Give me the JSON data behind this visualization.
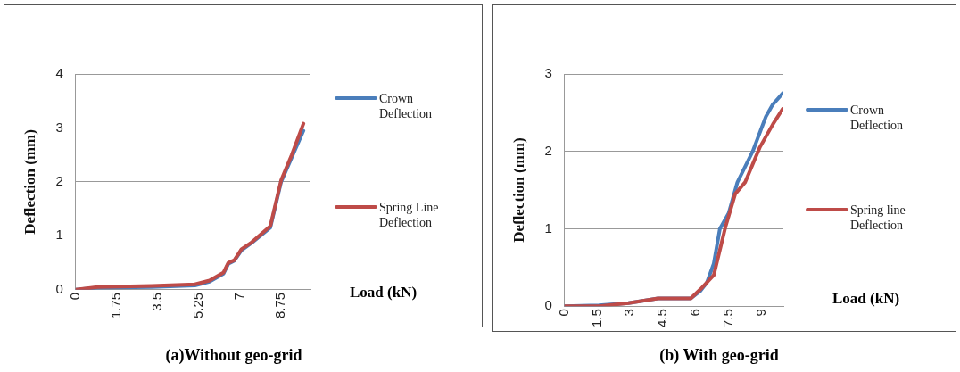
{
  "chart_data": [
    {
      "type": "line",
      "title": "(a)Without geo-grid",
      "xlabel": "Load (kN)",
      "ylabel": "Deflection (mm)",
      "xlim": [
        0,
        10
      ],
      "xticks": [
        0,
        1.75,
        3.5,
        5.25,
        7,
        8.75
      ],
      "ylim": [
        0,
        4
      ],
      "yticks": [
        0,
        1,
        2,
        3,
        4
      ],
      "grid": "y",
      "legend": "right",
      "marker": "none",
      "line_style": "solid",
      "series": [
        {
          "name": "Crown Deflection",
          "color": "#4a7ebb",
          "x": [
            0,
            0.95,
            3.24,
            5.08,
            5.7,
            6.3,
            6.5,
            6.76,
            7.06,
            7.5,
            8.29,
            8.75,
            9.2,
            9.7
          ],
          "values": [
            0,
            0.04,
            0.05,
            0.08,
            0.15,
            0.3,
            0.48,
            0.54,
            0.73,
            0.87,
            1.15,
            2.0,
            2.45,
            2.95
          ]
        },
        {
          "name": "Spring Line Deflection",
          "color": "#be4b48",
          "x": [
            0,
            0.95,
            3.24,
            5.08,
            5.7,
            6.3,
            6.5,
            6.76,
            7.06,
            7.5,
            8.29,
            8.75,
            9.2,
            9.7
          ],
          "values": [
            0,
            0.05,
            0.07,
            0.1,
            0.17,
            0.32,
            0.5,
            0.55,
            0.75,
            0.88,
            1.18,
            2.03,
            2.5,
            3.08
          ]
        }
      ]
    },
    {
      "type": "line",
      "title": "(b) With geo-grid",
      "xlabel": "Load (kN)",
      "ylabel": "Deflection (mm)",
      "xlim": [
        0,
        10
      ],
      "xticks": [
        0,
        1.5,
        3,
        4.5,
        6,
        7.5,
        9
      ],
      "ylim": [
        0,
        3
      ],
      "yticks": [
        0,
        1,
        2,
        3
      ],
      "grid": "y",
      "legend": "right",
      "marker": "none",
      "line_style": "solid",
      "series": [
        {
          "name": "Crown Deflection",
          "color": "#4a7ebb",
          "x": [
            0,
            1.57,
            2.92,
            4.27,
            5.77,
            6.22,
            6.5,
            6.82,
            7.1,
            7.5,
            7.9,
            8.6,
            9.2,
            9.5,
            9.97
          ],
          "values": [
            0,
            0.01,
            0.04,
            0.1,
            0.1,
            0.2,
            0.3,
            0.55,
            1.0,
            1.2,
            1.6,
            2.0,
            2.45,
            2.6,
            2.75
          ]
        },
        {
          "name": "Spring line Deflection",
          "color": "#be4b48",
          "x": [
            0,
            1.57,
            2.92,
            4.27,
            5.77,
            6.22,
            6.82,
            7.35,
            7.8,
            8.25,
            8.92,
            9.52,
            9.97
          ],
          "values": [
            0,
            0.0,
            0.04,
            0.1,
            0.1,
            0.22,
            0.4,
            1.02,
            1.45,
            1.6,
            2.05,
            2.35,
            2.55
          ]
        }
      ]
    }
  ]
}
